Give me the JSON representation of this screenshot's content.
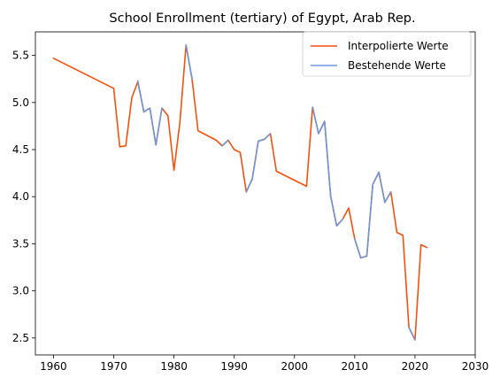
{
  "chart_data": {
    "type": "line",
    "title": "School Enrollment (tertiary) of Egypt, Arab Rep.",
    "xlabel": "",
    "ylabel": "",
    "xlim": [
      1957,
      2030
    ],
    "ylim": [
      2.32,
      5.75
    ],
    "x_ticks": [
      1960,
      1970,
      1980,
      1990,
      2000,
      2010,
      2020,
      2030
    ],
    "y_ticks": [
      2.5,
      3.0,
      3.5,
      4.0,
      4.5,
      5.0,
      5.5
    ],
    "grid": false,
    "legend_position": "top-right",
    "series": [
      {
        "name": "Interpolierte Werte",
        "color": "#f2510f",
        "x": [
          1960,
          1970,
          1971,
          1972,
          1973,
          1974,
          1975,
          1976,
          1977,
          1978,
          1979,
          1980,
          1981,
          1982,
          1983,
          1984,
          1987,
          1988,
          1989,
          1990,
          1991,
          1992,
          1993,
          1994,
          1995,
          1996,
          1997,
          2002,
          2003,
          2004,
          2005,
          2006,
          2007,
          2008,
          2009,
          2010,
          2011,
          2012,
          2013,
          2014,
          2015,
          2016,
          2017,
          2018,
          2019,
          2020,
          2021,
          2022
        ],
        "values": [
          5.47,
          5.15,
          4.53,
          4.54,
          5.05,
          5.22,
          4.9,
          4.94,
          4.55,
          4.94,
          4.86,
          4.28,
          4.8,
          5.61,
          5.25,
          4.7,
          4.6,
          4.54,
          4.6,
          4.5,
          4.47,
          4.05,
          4.19,
          4.59,
          4.61,
          4.67,
          4.27,
          4.11,
          4.95,
          4.67,
          4.8,
          4.01,
          3.69,
          3.76,
          3.88,
          3.55,
          3.35,
          3.37,
          4.13,
          4.26,
          3.94,
          4.05,
          3.62,
          3.59,
          2.61,
          2.48,
          3.49,
          3.46
        ]
      },
      {
        "name": "Bestehende Werte",
        "color": "#6f96d6",
        "segments": [
          {
            "x": [
              1974,
              1975,
              1976,
              1977,
              1978
            ],
            "values": [
              5.23,
              4.9,
              4.94,
              4.55,
              4.94
            ]
          },
          {
            "x": [
              1982,
              1983
            ],
            "values": [
              5.61,
              5.25
            ]
          },
          {
            "x": [
              1988,
              1989
            ],
            "values": [
              4.54,
              4.6
            ]
          },
          {
            "x": [
              1992,
              1993,
              1994,
              1995,
              1996
            ],
            "values": [
              4.05,
              4.19,
              4.59,
              4.61,
              4.67
            ]
          },
          {
            "x": [
              2003,
              2004,
              2005,
              2006,
              2007,
              2008
            ],
            "values": [
              4.95,
              4.67,
              4.8,
              4.01,
              3.69,
              3.76
            ]
          },
          {
            "x": [
              2010,
              2011,
              2012,
              2013,
              2014,
              2015,
              2016
            ],
            "values": [
              3.55,
              3.35,
              3.37,
              4.13,
              4.26,
              3.94,
              4.05
            ]
          },
          {
            "x": [
              2019,
              2020
            ],
            "values": [
              2.61,
              2.48
            ]
          }
        ]
      }
    ]
  }
}
